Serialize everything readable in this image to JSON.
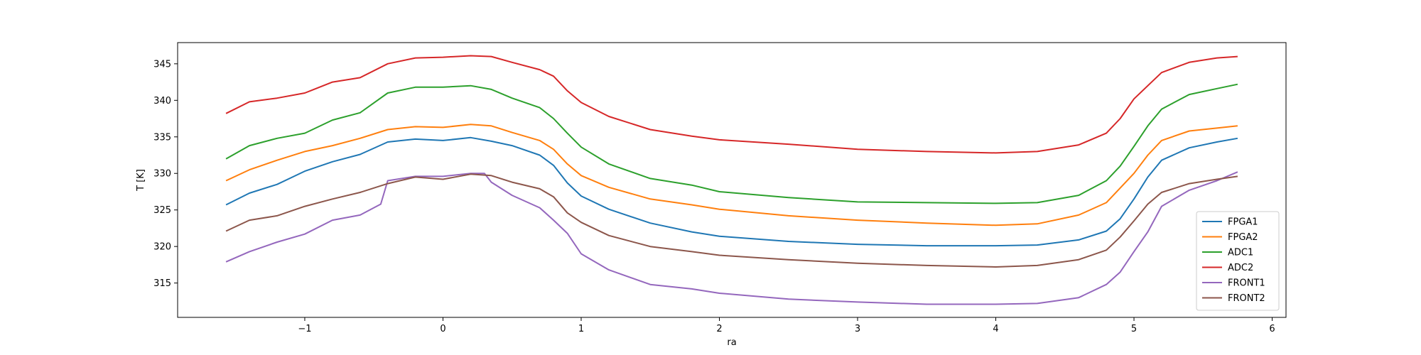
{
  "chart_data": {
    "type": "line",
    "xlabel": "ra",
    "ylabel": "T [K]",
    "xlim": [
      -1.92,
      6.1
    ],
    "ylim": [
      310.3,
      347.9
    ],
    "x_ticks": [
      -1,
      0,
      1,
      2,
      3,
      4,
      5,
      6
    ],
    "x_tick_labels": [
      "−1",
      "0",
      "1",
      "2",
      "3",
      "4",
      "5",
      "6"
    ],
    "y_ticks": [
      315,
      320,
      325,
      330,
      335,
      340,
      345
    ],
    "y_tick_labels": [
      "315",
      "320",
      "325",
      "330",
      "335",
      "340",
      "345"
    ],
    "grid": false,
    "legend_position": "lower right",
    "series": [
      {
        "name": "FPGA1",
        "color": "#1f77b4",
        "points": [
          [
            -1.57,
            325.7
          ],
          [
            -1.4,
            327.3
          ],
          [
            -1.2,
            328.5
          ],
          [
            -1.0,
            330.3
          ],
          [
            -0.8,
            331.6
          ],
          [
            -0.6,
            332.6
          ],
          [
            -0.4,
            334.3
          ],
          [
            -0.2,
            334.7
          ],
          [
            0.0,
            334.5
          ],
          [
            0.2,
            334.9
          ],
          [
            0.35,
            334.4
          ],
          [
            0.5,
            333.8
          ],
          [
            0.7,
            332.5
          ],
          [
            0.8,
            331.1
          ],
          [
            0.9,
            328.7
          ],
          [
            1.0,
            326.9
          ],
          [
            1.2,
            325.1
          ],
          [
            1.5,
            323.2
          ],
          [
            1.8,
            322.0
          ],
          [
            2.0,
            321.4
          ],
          [
            2.5,
            320.7
          ],
          [
            3.0,
            320.3
          ],
          [
            3.5,
            320.1
          ],
          [
            4.0,
            320.1
          ],
          [
            4.3,
            320.2
          ],
          [
            4.6,
            320.9
          ],
          [
            4.8,
            322.1
          ],
          [
            4.9,
            323.8
          ],
          [
            5.0,
            326.5
          ],
          [
            5.1,
            329.5
          ],
          [
            5.2,
            331.8
          ],
          [
            5.4,
            333.5
          ],
          [
            5.6,
            334.3
          ],
          [
            5.75,
            334.8
          ]
        ]
      },
      {
        "name": "FPGA2",
        "color": "#ff7f0e",
        "points": [
          [
            -1.57,
            329.0
          ],
          [
            -1.4,
            330.5
          ],
          [
            -1.2,
            331.8
          ],
          [
            -1.0,
            333.0
          ],
          [
            -0.8,
            333.8
          ],
          [
            -0.6,
            334.8
          ],
          [
            -0.4,
            336.0
          ],
          [
            -0.2,
            336.4
          ],
          [
            0.0,
            336.3
          ],
          [
            0.2,
            336.7
          ],
          [
            0.35,
            336.5
          ],
          [
            0.5,
            335.6
          ],
          [
            0.7,
            334.5
          ],
          [
            0.8,
            333.3
          ],
          [
            0.9,
            331.3
          ],
          [
            1.0,
            329.7
          ],
          [
            1.2,
            328.1
          ],
          [
            1.5,
            326.5
          ],
          [
            1.8,
            325.7
          ],
          [
            2.0,
            325.1
          ],
          [
            2.5,
            324.2
          ],
          [
            3.0,
            323.6
          ],
          [
            3.5,
            323.2
          ],
          [
            4.0,
            322.9
          ],
          [
            4.3,
            323.1
          ],
          [
            4.6,
            324.3
          ],
          [
            4.8,
            326.0
          ],
          [
            4.9,
            328.0
          ],
          [
            5.0,
            330.0
          ],
          [
            5.1,
            332.5
          ],
          [
            5.2,
            334.5
          ],
          [
            5.4,
            335.8
          ],
          [
            5.6,
            336.2
          ],
          [
            5.75,
            336.5
          ]
        ]
      },
      {
        "name": "ADC1",
        "color": "#2ca02c",
        "points": [
          [
            -1.57,
            332.0
          ],
          [
            -1.4,
            333.8
          ],
          [
            -1.2,
            334.8
          ],
          [
            -1.0,
            335.5
          ],
          [
            -0.8,
            337.3
          ],
          [
            -0.6,
            338.3
          ],
          [
            -0.4,
            341.0
          ],
          [
            -0.2,
            341.8
          ],
          [
            0.0,
            341.8
          ],
          [
            0.2,
            342.0
          ],
          [
            0.35,
            341.5
          ],
          [
            0.5,
            340.3
          ],
          [
            0.7,
            339.0
          ],
          [
            0.8,
            337.5
          ],
          [
            0.9,
            335.5
          ],
          [
            1.0,
            333.6
          ],
          [
            1.2,
            331.3
          ],
          [
            1.5,
            329.3
          ],
          [
            1.8,
            328.4
          ],
          [
            2.0,
            327.5
          ],
          [
            2.5,
            326.7
          ],
          [
            3.0,
            326.1
          ],
          [
            3.5,
            326.0
          ],
          [
            4.0,
            325.9
          ],
          [
            4.3,
            326.0
          ],
          [
            4.6,
            327.0
          ],
          [
            4.8,
            329.0
          ],
          [
            4.9,
            331.0
          ],
          [
            5.0,
            333.7
          ],
          [
            5.1,
            336.5
          ],
          [
            5.2,
            338.8
          ],
          [
            5.4,
            340.8
          ],
          [
            5.6,
            341.6
          ],
          [
            5.75,
            342.2
          ]
        ]
      },
      {
        "name": "ADC2",
        "color": "#d62728",
        "points": [
          [
            -1.57,
            338.2
          ],
          [
            -1.4,
            339.8
          ],
          [
            -1.2,
            340.3
          ],
          [
            -1.0,
            341.0
          ],
          [
            -0.8,
            342.5
          ],
          [
            -0.6,
            343.1
          ],
          [
            -0.4,
            345.0
          ],
          [
            -0.2,
            345.8
          ],
          [
            0.0,
            345.9
          ],
          [
            0.2,
            346.1
          ],
          [
            0.35,
            346.0
          ],
          [
            0.5,
            345.2
          ],
          [
            0.7,
            344.2
          ],
          [
            0.8,
            343.3
          ],
          [
            0.9,
            341.3
          ],
          [
            1.0,
            339.7
          ],
          [
            1.2,
            337.8
          ],
          [
            1.5,
            336.0
          ],
          [
            1.8,
            335.1
          ],
          [
            2.0,
            334.6
          ],
          [
            2.5,
            334.0
          ],
          [
            3.0,
            333.3
          ],
          [
            3.5,
            333.0
          ],
          [
            4.0,
            332.8
          ],
          [
            4.3,
            333.0
          ],
          [
            4.6,
            333.9
          ],
          [
            4.8,
            335.5
          ],
          [
            4.9,
            337.5
          ],
          [
            5.0,
            340.2
          ],
          [
            5.1,
            342.0
          ],
          [
            5.2,
            343.8
          ],
          [
            5.4,
            345.2
          ],
          [
            5.6,
            345.8
          ],
          [
            5.75,
            346.0
          ]
        ]
      },
      {
        "name": "FRONT1",
        "color": "#9467bd",
        "points": [
          [
            -1.57,
            317.9
          ],
          [
            -1.4,
            319.3
          ],
          [
            -1.2,
            320.6
          ],
          [
            -1.0,
            321.7
          ],
          [
            -0.8,
            323.6
          ],
          [
            -0.6,
            324.3
          ],
          [
            -0.45,
            325.8
          ],
          [
            -0.4,
            329.0
          ],
          [
            -0.2,
            329.6
          ],
          [
            0.0,
            329.6
          ],
          [
            0.2,
            330.0
          ],
          [
            0.3,
            330.0
          ],
          [
            0.35,
            328.8
          ],
          [
            0.5,
            327.0
          ],
          [
            0.7,
            325.3
          ],
          [
            0.8,
            323.6
          ],
          [
            0.9,
            321.8
          ],
          [
            1.0,
            319.0
          ],
          [
            1.2,
            316.8
          ],
          [
            1.5,
            314.8
          ],
          [
            1.8,
            314.2
          ],
          [
            2.0,
            313.6
          ],
          [
            2.5,
            312.8
          ],
          [
            3.0,
            312.4
          ],
          [
            3.5,
            312.1
          ],
          [
            4.0,
            312.1
          ],
          [
            4.3,
            312.2
          ],
          [
            4.6,
            313.0
          ],
          [
            4.8,
            314.8
          ],
          [
            4.9,
            316.5
          ],
          [
            5.0,
            319.3
          ],
          [
            5.1,
            322.0
          ],
          [
            5.2,
            325.5
          ],
          [
            5.4,
            327.7
          ],
          [
            5.6,
            329.0
          ],
          [
            5.75,
            330.2
          ]
        ]
      },
      {
        "name": "FRONT2",
        "color": "#8c564b",
        "points": [
          [
            -1.57,
            322.1
          ],
          [
            -1.4,
            323.6
          ],
          [
            -1.2,
            324.2
          ],
          [
            -1.0,
            325.5
          ],
          [
            -0.8,
            326.5
          ],
          [
            -0.6,
            327.4
          ],
          [
            -0.4,
            328.6
          ],
          [
            -0.2,
            329.5
          ],
          [
            0.0,
            329.2
          ],
          [
            0.2,
            329.9
          ],
          [
            0.35,
            329.7
          ],
          [
            0.5,
            328.8
          ],
          [
            0.7,
            327.9
          ],
          [
            0.8,
            326.8
          ],
          [
            0.9,
            324.6
          ],
          [
            1.0,
            323.3
          ],
          [
            1.2,
            321.5
          ],
          [
            1.5,
            320.0
          ],
          [
            1.8,
            319.3
          ],
          [
            2.0,
            318.8
          ],
          [
            2.5,
            318.2
          ],
          [
            3.0,
            317.7
          ],
          [
            3.5,
            317.4
          ],
          [
            4.0,
            317.2
          ],
          [
            4.3,
            317.4
          ],
          [
            4.6,
            318.2
          ],
          [
            4.8,
            319.5
          ],
          [
            4.9,
            321.3
          ],
          [
            5.0,
            323.5
          ],
          [
            5.1,
            325.8
          ],
          [
            5.2,
            327.4
          ],
          [
            5.4,
            328.6
          ],
          [
            5.6,
            329.2
          ],
          [
            5.75,
            329.6
          ]
        ]
      }
    ]
  }
}
